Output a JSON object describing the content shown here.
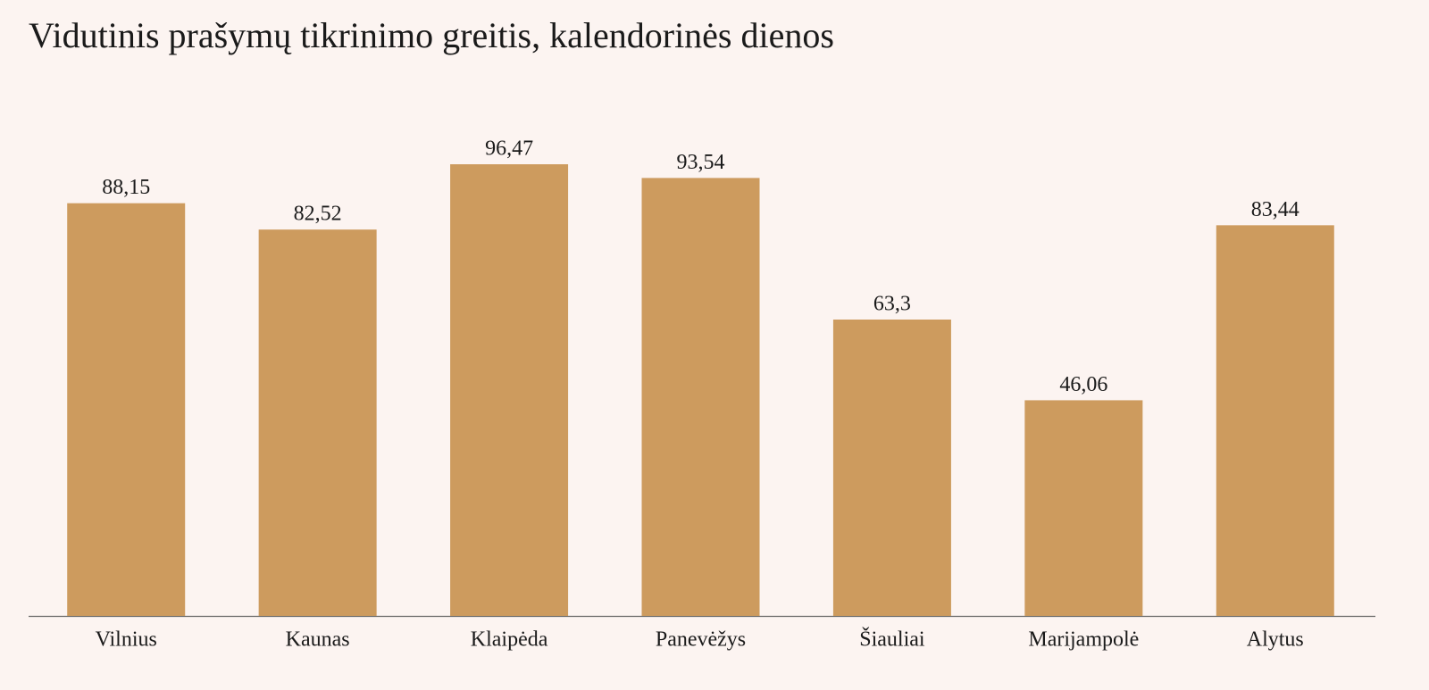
{
  "chart_data": {
    "type": "bar",
    "title": "Vidutinis prašymų tikrinimo greitis, kalendorinės dienos",
    "categories": [
      "Vilnius",
      "Kaunas",
      "Klaipėda",
      "Panevėžys",
      "Šiauliai",
      "Marijampolė",
      "Alytus"
    ],
    "values": [
      88.15,
      82.52,
      96.47,
      93.54,
      63.3,
      46.06,
      83.44
    ],
    "value_labels": [
      "88,15",
      "82,52",
      "96,47",
      "93,54",
      "63,3",
      "46,06",
      "83,44"
    ],
    "color": "#cd9b5e",
    "ylim": [
      0,
      100
    ]
  }
}
